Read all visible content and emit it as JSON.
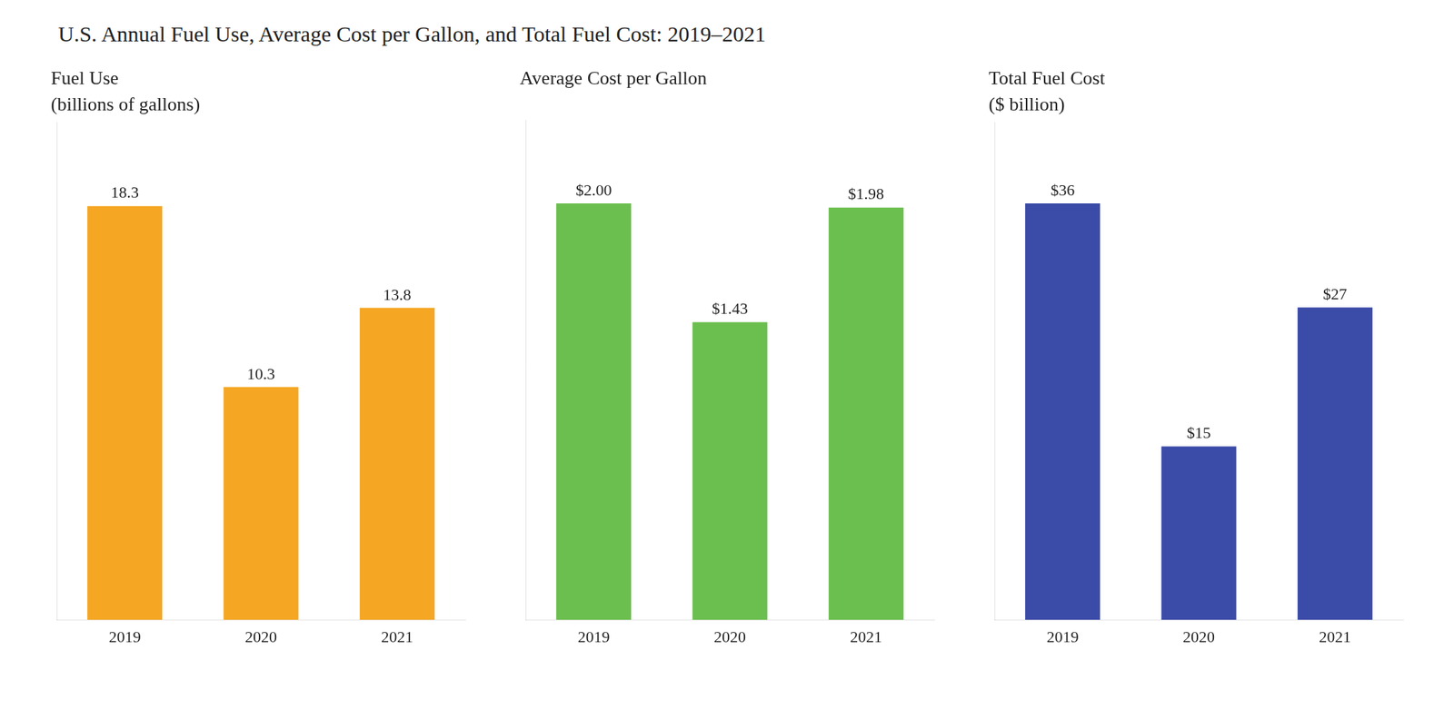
{
  "title": "U.S. Annual Fuel Use, Average Cost per Gallon, and Total Fuel Cost: 2019–2021",
  "chart_data": [
    {
      "type": "bar",
      "title": "Fuel Use",
      "subtitle": "(billions of gallons)",
      "categories": [
        "2019",
        "2020",
        "2021"
      ],
      "values": [
        18.3,
        10.3,
        13.8
      ],
      "color": "#F5A623",
      "ylim": [
        0,
        22
      ],
      "grid": false,
      "data_labels": true,
      "tick_labels": "x"
    },
    {
      "type": "bar",
      "title": "Average Cost per Gallon",
      "categories": [
        "2019",
        "2020",
        "2021"
      ],
      "values": [
        2.0,
        1.43,
        1.98
      ],
      "value_labels": [
        "$2.00",
        "$1.43",
        "$1.98"
      ],
      "color": "#6BBF4E",
      "ylim": [
        0,
        2.4
      ],
      "grid": false,
      "data_labels": true,
      "tick_labels": "x"
    },
    {
      "type": "bar",
      "title": "Total Fuel Cost",
      "subtitle": "($ billion)",
      "categories": [
        "2019",
        "2020",
        "2021"
      ],
      "values": [
        36,
        15,
        27
      ],
      "value_labels": [
        "$36",
        "$15",
        "$27"
      ],
      "color": "#3B4BA8",
      "ylim": [
        0,
        43
      ],
      "grid": false,
      "data_labels": true,
      "tick_labels": "x"
    }
  ]
}
